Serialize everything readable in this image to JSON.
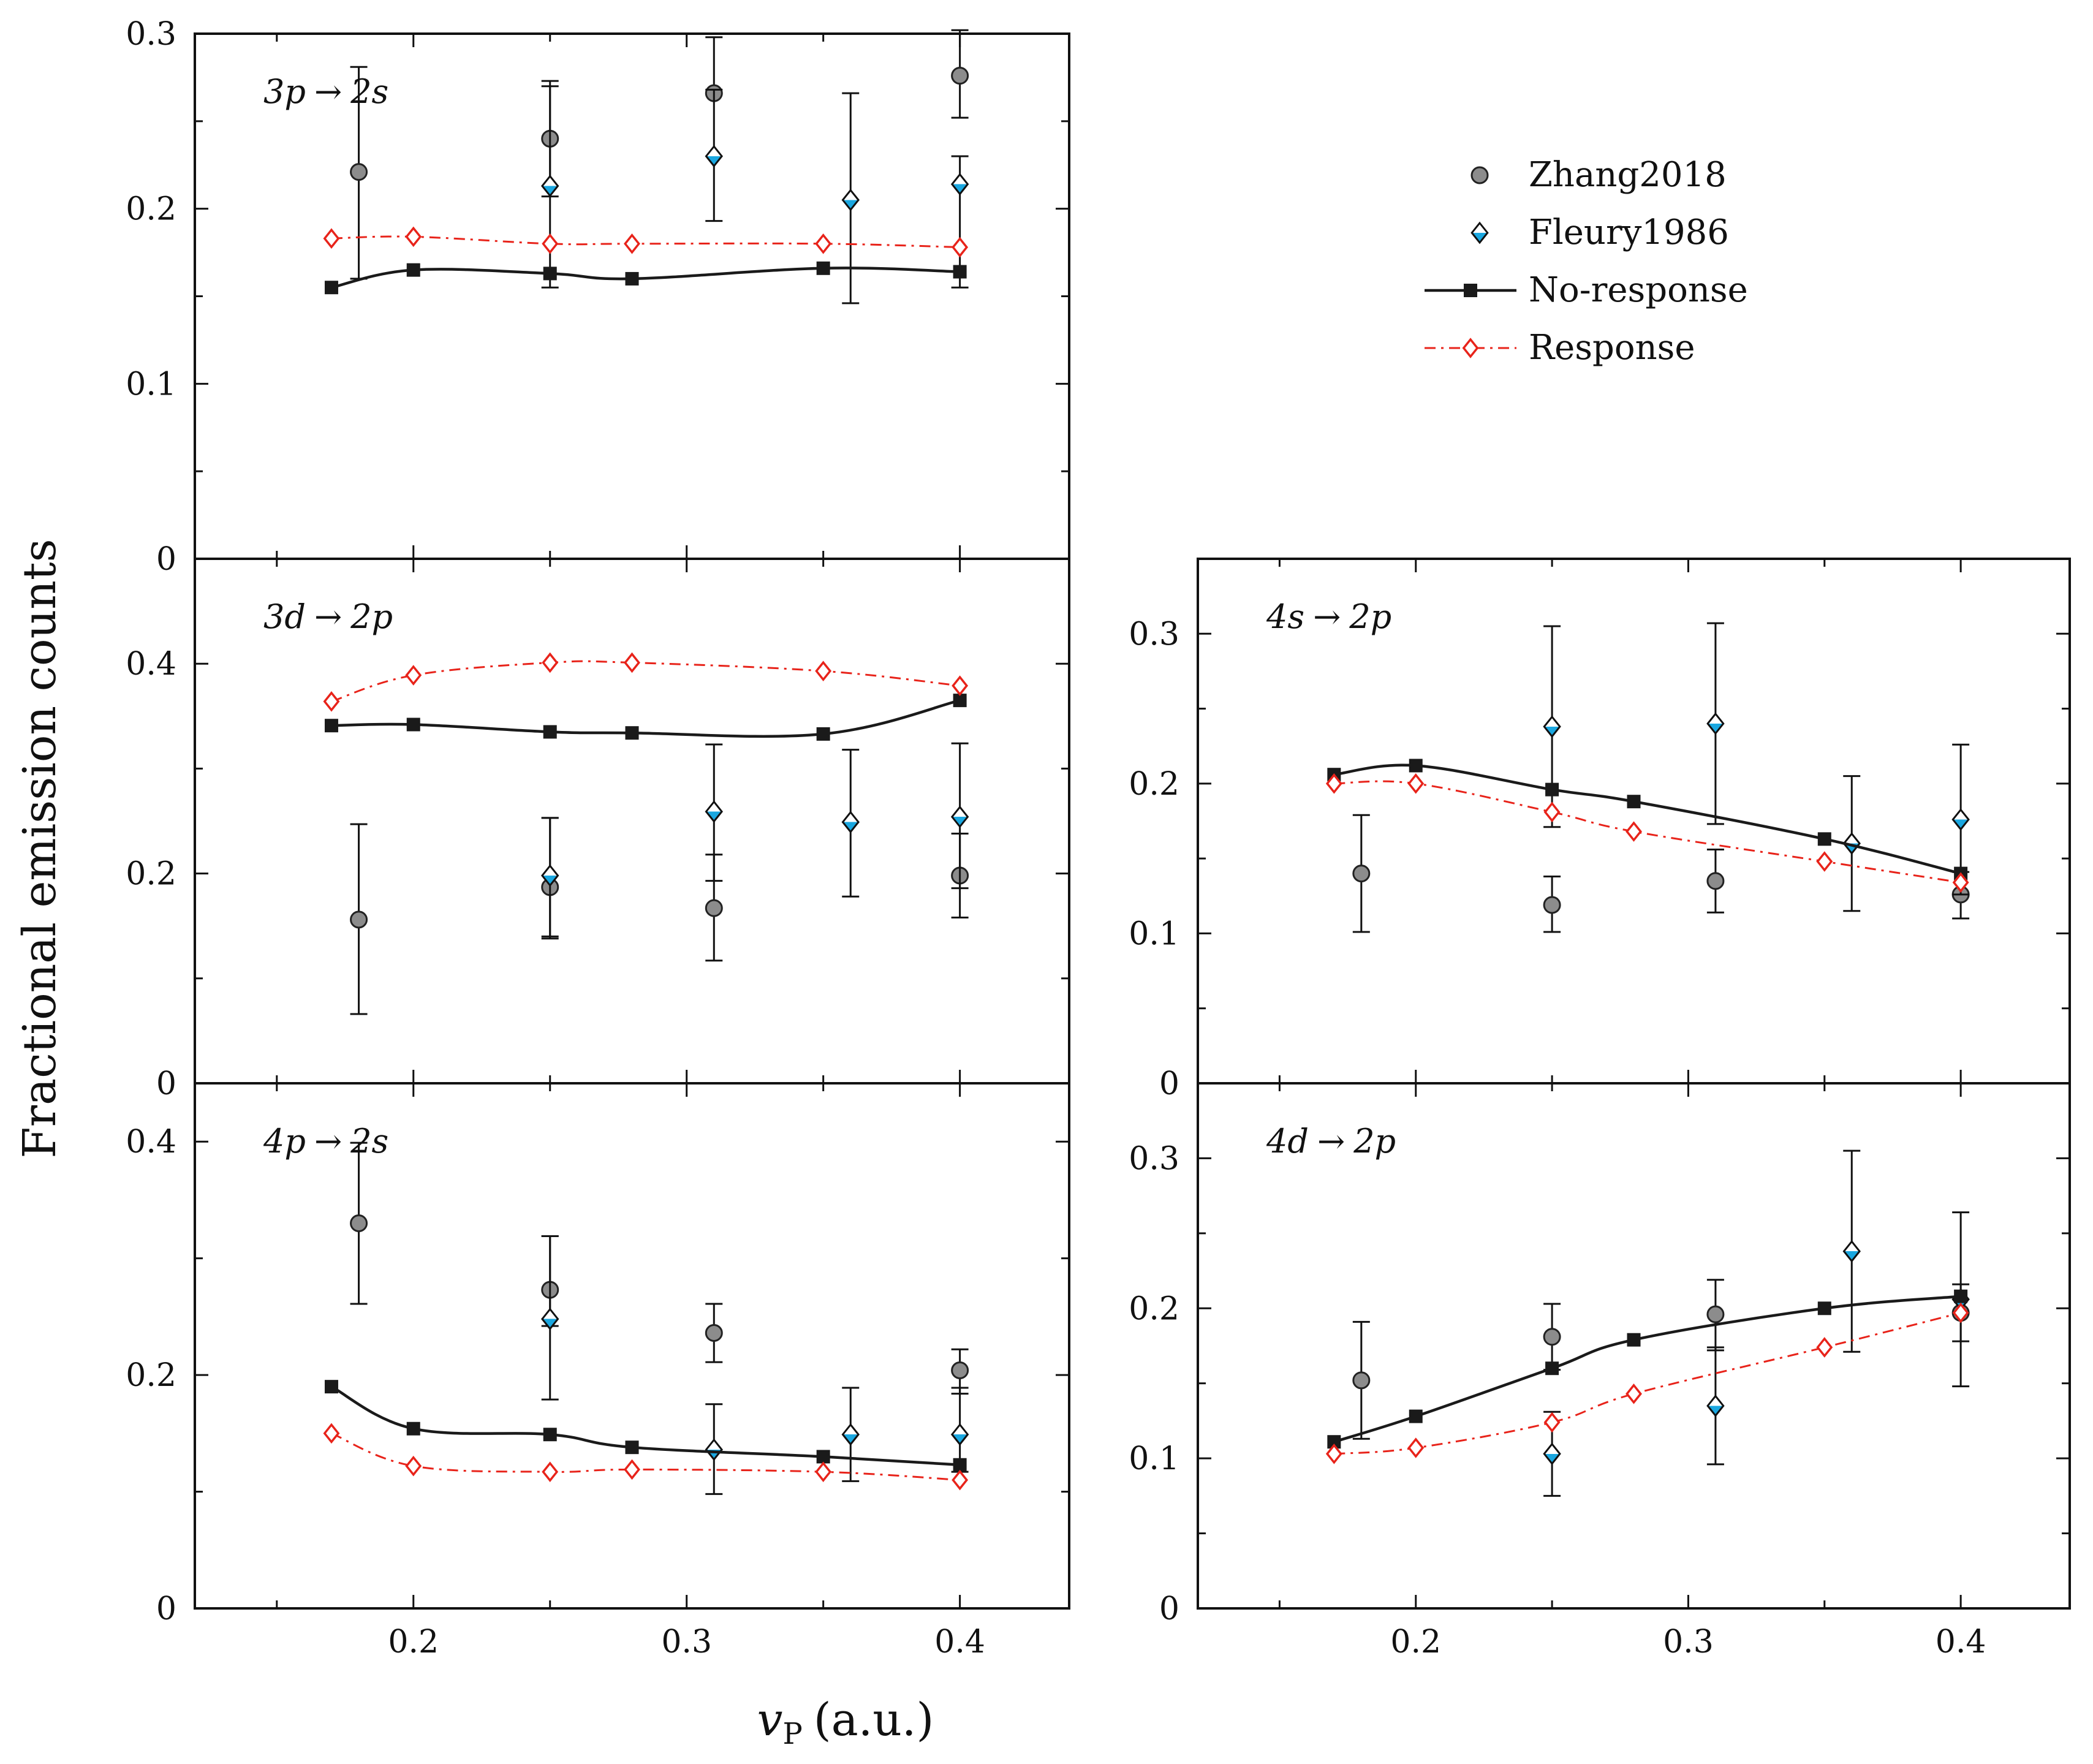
{
  "colors": {
    "zhang": "#8c8c8c",
    "fleury_top": "#ffffff",
    "fleury_bottom": "#1aa7e0",
    "no_response": "#1a1a1a",
    "response": "#e8231a"
  },
  "axes": {
    "x_label": "v",
    "x_label_sub": "P",
    "x_label_unit": "(a.u.)",
    "y_label": "Fractional emission counts"
  },
  "legend": {
    "entries": [
      {
        "label": "Zhang2018"
      },
      {
        "label": "Fleury1986"
      },
      {
        "label": "No-response"
      },
      {
        "label": "Response"
      }
    ]
  },
  "chart_data": [
    {
      "id": "3p-2s",
      "type": "scatter",
      "title_parts": [
        "3p",
        "2s"
      ],
      "title_arrow": "→",
      "xlim": [
        0.12,
        0.44
      ],
      "ylim": [
        0,
        0.3
      ],
      "xticks": [
        0.2,
        0.3,
        0.4
      ],
      "yticks": [
        0,
        0.1,
        0.2,
        0.3
      ],
      "ytick_labels": [
        "0",
        "0.1",
        "0.2",
        "0.3"
      ],
      "series": [
        {
          "name": "Zhang2018",
          "kind": "exp_circle",
          "x": [
            0.18,
            0.25,
            0.31,
            0.4
          ],
          "y": [
            0.221,
            0.24,
            0.266,
            0.276
          ],
          "err": [
            [
              0.16,
              0.281
            ],
            [
              0.207,
              0.273
            ],
            [
              0.266,
              0.298
            ],
            [
              0.252,
              0.302
            ]
          ]
        },
        {
          "name": "Fleury1986",
          "kind": "exp_diamond",
          "x": [
            0.25,
            0.31,
            0.36,
            0.4
          ],
          "y": [
            0.213,
            0.23,
            0.205,
            0.214
          ],
          "err": [
            [
              0.155,
              0.27
            ],
            [
              0.193,
              0.268
            ],
            [
              0.146,
              0.266
            ],
            [
              0.155,
              0.23
            ]
          ]
        },
        {
          "name": "No-response",
          "kind": "line",
          "x": [
            0.17,
            0.2,
            0.25,
            0.28,
            0.35,
            0.4
          ],
          "y": [
            0.155,
            0.165,
            0.163,
            0.16,
            0.166,
            0.164
          ]
        },
        {
          "name": "Response",
          "kind": "dashdot",
          "x": [
            0.17,
            0.2,
            0.25,
            0.28,
            0.35,
            0.4
          ],
          "y": [
            0.183,
            0.184,
            0.18,
            0.18,
            0.18,
            0.178
          ]
        }
      ]
    },
    {
      "id": "3d-2p",
      "type": "scatter",
      "title_parts": [
        "3d",
        "2p"
      ],
      "title_arrow": "→",
      "xlim": [
        0.12,
        0.44
      ],
      "ylim": [
        0,
        0.5
      ],
      "xticks": [
        0.2,
        0.3,
        0.4
      ],
      "yticks": [
        0,
        0.2,
        0.4
      ],
      "ytick_labels": [
        "0",
        "0.2",
        "0.4"
      ],
      "series": [
        {
          "name": "Zhang2018",
          "kind": "exp_circle",
          "x": [
            0.18,
            0.25,
            0.31,
            0.4
          ],
          "y": [
            0.156,
            0.187,
            0.167,
            0.198
          ],
          "err": [
            [
              0.066,
              0.247
            ],
            [
              0.14,
              0.253
            ],
            [
              0.117,
              0.218
            ],
            [
              0.158,
              0.238
            ]
          ]
        },
        {
          "name": "Fleury1986",
          "kind": "exp_diamond",
          "x": [
            0.25,
            0.31,
            0.36,
            0.4
          ],
          "y": [
            0.198,
            0.259,
            0.249,
            0.254
          ],
          "err": [
            [
              0.138,
              0.253
            ],
            [
              0.193,
              0.323
            ],
            [
              0.178,
              0.318
            ],
            [
              0.186,
              0.324
            ]
          ]
        },
        {
          "name": "No-response",
          "kind": "line",
          "x": [
            0.17,
            0.2,
            0.25,
            0.28,
            0.35,
            0.4
          ],
          "y": [
            0.341,
            0.342,
            0.335,
            0.334,
            0.333,
            0.365
          ]
        },
        {
          "name": "Response",
          "kind": "dashdot",
          "x": [
            0.17,
            0.2,
            0.25,
            0.28,
            0.35,
            0.4
          ],
          "y": [
            0.364,
            0.389,
            0.401,
            0.401,
            0.393,
            0.379
          ]
        }
      ]
    },
    {
      "id": "4p-2s",
      "type": "scatter",
      "title_parts": [
        "4p",
        "2s"
      ],
      "title_arrow": "→",
      "xlim": [
        0.12,
        0.44
      ],
      "ylim": [
        0,
        0.45
      ],
      "xticks": [
        0.2,
        0.3,
        0.4
      ],
      "yticks": [
        0,
        0.2,
        0.4
      ],
      "ytick_labels": [
        "0",
        "0.2",
        "0.4"
      ],
      "series": [
        {
          "name": "Zhang2018",
          "kind": "exp_circle",
          "x": [
            0.18,
            0.25,
            0.31,
            0.4
          ],
          "y": [
            0.33,
            0.273,
            0.236,
            0.204
          ],
          "err": [
            [
              0.261,
              0.399
            ],
            [
              0.242,
              0.319
            ],
            [
              0.211,
              0.261
            ],
            [
              0.184,
              0.222
            ]
          ]
        },
        {
          "name": "Fleury1986",
          "kind": "exp_diamond",
          "x": [
            0.25,
            0.31,
            0.36,
            0.4
          ],
          "y": [
            0.248,
            0.136,
            0.149,
            0.149
          ],
          "err": [
            [
              0.179,
              0.319
            ],
            [
              0.098,
              0.175
            ],
            [
              0.109,
              0.189
            ],
            [
              0.117,
              0.189
            ]
          ]
        },
        {
          "name": "No-response",
          "kind": "line",
          "x": [
            0.17,
            0.2,
            0.25,
            0.28,
            0.35,
            0.4
          ],
          "y": [
            0.19,
            0.154,
            0.149,
            0.138,
            0.13,
            0.123
          ]
        },
        {
          "name": "Response",
          "kind": "dashdot",
          "x": [
            0.17,
            0.2,
            0.25,
            0.28,
            0.35,
            0.4
          ],
          "y": [
            0.15,
            0.122,
            0.117,
            0.119,
            0.117,
            0.11
          ]
        }
      ]
    },
    {
      "id": "4s-2p",
      "type": "scatter",
      "title_parts": [
        "4s",
        "2p"
      ],
      "title_arrow": "→",
      "xlim": [
        0.12,
        0.44
      ],
      "ylim": [
        0,
        0.35
      ],
      "xticks": [
        0.2,
        0.3,
        0.4
      ],
      "yticks": [
        0,
        0.1,
        0.2,
        0.3
      ],
      "ytick_labels": [
        "0",
        "0.1",
        "0.2",
        "0.3"
      ],
      "series": [
        {
          "name": "Zhang2018",
          "kind": "exp_circle",
          "x": [
            0.18,
            0.25,
            0.31,
            0.4
          ],
          "y": [
            0.14,
            0.119,
            0.135,
            0.126
          ],
          "err": [
            [
              0.101,
              0.179
            ],
            [
              0.101,
              0.138
            ],
            [
              0.114,
              0.156
            ],
            [
              0.11,
              0.141
            ]
          ]
        },
        {
          "name": "Fleury1986",
          "kind": "exp_diamond",
          "x": [
            0.25,
            0.31,
            0.36,
            0.4
          ],
          "y": [
            0.238,
            0.24,
            0.16,
            0.176
          ],
          "err": [
            [
              0.171,
              0.305
            ],
            [
              0.173,
              0.307
            ],
            [
              0.115,
              0.205
            ],
            [
              0.126,
              0.226
            ]
          ]
        },
        {
          "name": "No-response",
          "kind": "line",
          "x": [
            0.17,
            0.2,
            0.25,
            0.28,
            0.35,
            0.4
          ],
          "y": [
            0.206,
            0.212,
            0.196,
            0.188,
            0.163,
            0.14
          ]
        },
        {
          "name": "Response",
          "kind": "dashdot",
          "x": [
            0.17,
            0.2,
            0.25,
            0.28,
            0.35,
            0.4
          ],
          "y": [
            0.2,
            0.2,
            0.181,
            0.168,
            0.148,
            0.134
          ]
        }
      ]
    },
    {
      "id": "4d-2p",
      "type": "scatter",
      "title_parts": [
        "4d",
        "2p"
      ],
      "title_arrow": "→",
      "xlim": [
        0.12,
        0.44
      ],
      "ylim": [
        0,
        0.35
      ],
      "xticks": [
        0.2,
        0.3,
        0.4
      ],
      "yticks": [
        0,
        0.1,
        0.2,
        0.3
      ],
      "ytick_labels": [
        "0",
        "0.1",
        "0.2",
        "0.3"
      ],
      "series": [
        {
          "name": "Zhang2018",
          "kind": "exp_circle",
          "x": [
            0.18,
            0.25,
            0.31,
            0.4
          ],
          "y": [
            0.152,
            0.181,
            0.196,
            0.197
          ],
          "err": [
            [
              0.113,
              0.191
            ],
            [
              0.159,
              0.203
            ],
            [
              0.172,
              0.219
            ],
            [
              0.178,
              0.216
            ]
          ]
        },
        {
          "name": "Fleury1986",
          "kind": "exp_diamond",
          "x": [
            0.25,
            0.31,
            0.36,
            0.4
          ],
          "y": [
            0.103,
            0.135,
            0.238,
            0.206
          ],
          "err": [
            [
              0.075,
              0.131
            ],
            [
              0.096,
              0.174
            ],
            [
              0.171,
              0.305
            ],
            [
              0.148,
              0.264
            ]
          ]
        },
        {
          "name": "No-response",
          "kind": "line",
          "x": [
            0.17,
            0.2,
            0.25,
            0.28,
            0.35,
            0.4
          ],
          "y": [
            0.111,
            0.128,
            0.16,
            0.179,
            0.2,
            0.208
          ]
        },
        {
          "name": "Response",
          "kind": "dashdot",
          "x": [
            0.17,
            0.2,
            0.25,
            0.28,
            0.35,
            0.4
          ],
          "y": [
            0.103,
            0.107,
            0.124,
            0.143,
            0.174,
            0.197
          ]
        }
      ]
    }
  ]
}
